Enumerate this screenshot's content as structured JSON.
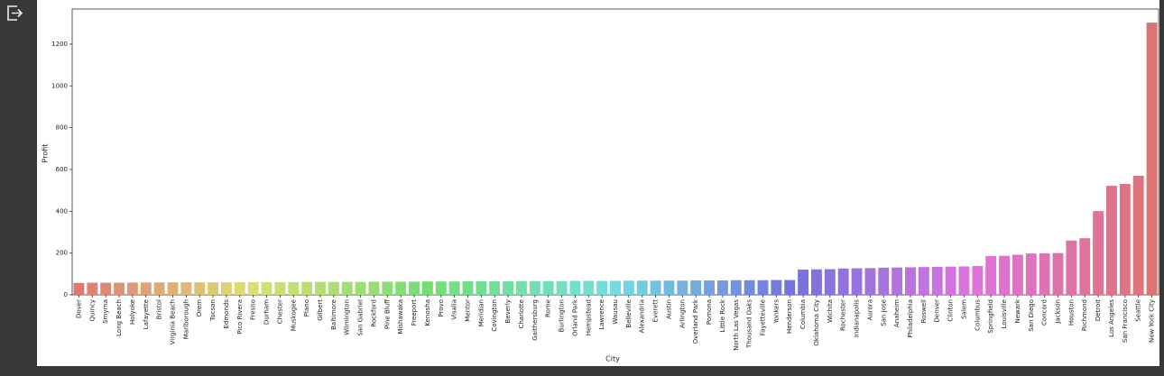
{
  "chart_data": {
    "type": "bar",
    "xlabel": "City",
    "ylabel": "Profit",
    "categories": [
      "Dover",
      "Quincy",
      "Smyrna",
      "Long Beach",
      "Holyoke",
      "Lafayette",
      "Bristol",
      "Virginia Beach",
      "Marlborough",
      "Orem",
      "Tucson",
      "Edmonds",
      "Pico Rivera",
      "Fresno",
      "Durham",
      "Chester",
      "Muskogee",
      "Plano",
      "Gilbert",
      "Baltimore",
      "Wilmington",
      "San Gabriel",
      "Rockford",
      "Pine Bluff",
      "Mishawaka",
      "Freeport",
      "Kenosha",
      "Provo",
      "Visalia",
      "Mentor",
      "Meridian",
      "Covington",
      "Beverly",
      "Charlotte",
      "Gaithersburg",
      "Rome",
      "Burlington",
      "Orland Park",
      "Hempstead",
      "Lawrence",
      "Wausau",
      "Belleville",
      "Alexandria",
      "Everett",
      "Austin",
      "Arlington",
      "Overland Park",
      "Pomona",
      "Little Rock",
      "North Las Vegas",
      "Thousand Oaks",
      "Fayetteville",
      "Yonkers",
      "Henderson",
      "Columbia",
      "Oklahoma City",
      "Wichita",
      "Rochester",
      "Indianapolis",
      "Aurora",
      "San Jose",
      "Anaheim",
      "Philadelphia",
      "Roswell",
      "Denver",
      "Clinton",
      "Salem",
      "Columbus",
      "Springfield",
      "Louisville",
      "Newark",
      "San Diego",
      "Concord",
      "Jackson",
      "Houston",
      "Richmond",
      "Detroit",
      "Los Angeles",
      "San Francisco",
      "Seattle",
      "New York City"
    ],
    "values": [
      57,
      58,
      58,
      58,
      59,
      59,
      59,
      60,
      60,
      60,
      60,
      60,
      61,
      61,
      61,
      61,
      61,
      62,
      62,
      62,
      62,
      62,
      63,
      63,
      63,
      63,
      64,
      64,
      64,
      65,
      65,
      65,
      65,
      66,
      66,
      66,
      66,
      67,
      67,
      67,
      67,
      68,
      68,
      68,
      68,
      68,
      69,
      69,
      69,
      70,
      70,
      70,
      71,
      71,
      121,
      122,
      123,
      126,
      127,
      128,
      130,
      131,
      132,
      133,
      134,
      135,
      136,
      138,
      186,
      187,
      192,
      198,
      199,
      200,
      260,
      271,
      401,
      522,
      531,
      570,
      1303
    ],
    "palette": "husl",
    "ylim": [
      0,
      1368
    ],
    "yticks": [
      0,
      200,
      400,
      600,
      800,
      1000,
      1200
    ]
  }
}
